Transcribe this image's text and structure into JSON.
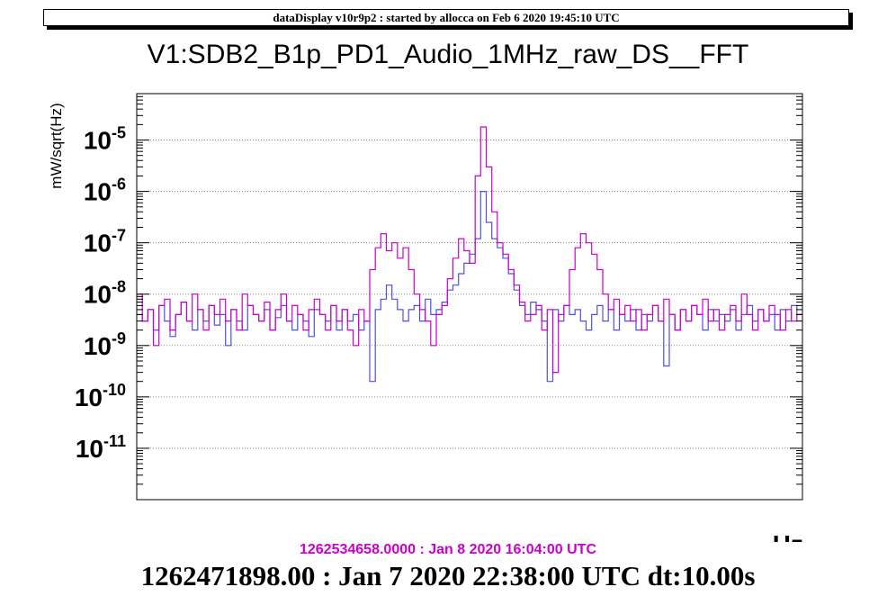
{
  "header": {
    "banner": "dataDisplay v10r9p2 : started by allocca on Feb  6 2020 19:45:10 UTC"
  },
  "footer": {
    "primary_time": "1262471898.00 : Jan  7 2020 22:38:00 UTC dt:10.00s",
    "secondary_time": "1262534658.0000 : Jan  8 2020 16:04:00 UTC"
  },
  "colors": {
    "series_primary": "#5050e0",
    "series_secondary": "#cc00cc",
    "grid": "#888888",
    "axis": "#000000"
  },
  "chart_data": {
    "type": "line",
    "title": "V1:SDB2_B1p_PD1_Audio_1MHz_raw_DS__FFT",
    "ylabel": "mW/sqrt(Hz)",
    "xlabel": "Hz",
    "yscale": "log",
    "ylim": [
      1e-12,
      8e-05
    ],
    "grid": true,
    "y_ticks": [
      {
        "value": 1e-05,
        "base": "10",
        "exp": "-5"
      },
      {
        "value": 1e-06,
        "base": "10",
        "exp": "-6"
      },
      {
        "value": 1e-07,
        "base": "10",
        "exp": "-7"
      },
      {
        "value": 1e-08,
        "base": "10",
        "exp": "-8"
      },
      {
        "value": 1e-09,
        "base": "10",
        "exp": "-9"
      },
      {
        "value": 1e-10,
        "base": "10",
        "exp": "-10"
      },
      {
        "value": 1e-11,
        "base": "10",
        "exp": "-11"
      }
    ],
    "series": [
      {
        "color": "#5050e0",
        "y": [
          4e-09,
          3e-09,
          5e-09,
          2e-09,
          6e-09,
          3e-09,
          1.5e-09,
          4e-09,
          7e-09,
          3e-09,
          2e-09,
          5e-09,
          3e-09,
          6e-09,
          2.5e-09,
          4e-09,
          1e-09,
          5e-09,
          3e-09,
          2e-09,
          6e-09,
          4e-09,
          3e-09,
          5e-09,
          2e-09,
          3.5e-09,
          6e-09,
          3e-09,
          2e-09,
          4e-09,
          3e-09,
          1.5e-09,
          5e-09,
          4e-09,
          3e-09,
          6e-09,
          2e-09,
          5e-09,
          3e-09,
          4e-09,
          2e-09,
          3e-09,
          2e-10,
          5e-09,
          8e-09,
          1.5e-08,
          8e-09,
          5e-09,
          3e-09,
          5e-09,
          6e-09,
          3e-09,
          8e-09,
          4e-09,
          5e-09,
          7e-09,
          1.2e-08,
          1.5e-08,
          2.5e-08,
          4e-08,
          6e-08,
          1.2e-07,
          1e-06,
          2.5e-07,
          1.2e-07,
          8e-08,
          5e-08,
          2.5e-08,
          1.2e-08,
          6e-09,
          4e-09,
          7e-09,
          5e-09,
          3e-09,
          2e-10,
          5e-09,
          3e-09,
          6e-09,
          4e-09,
          5e-09,
          3e-09,
          2e-09,
          4e-09,
          6e-09,
          3e-09,
          5e-09,
          2e-09,
          4e-09,
          3e-09,
          5e-09,
          2e-09,
          4e-09,
          3e-09,
          6e-09,
          3e-09,
          4e-10,
          4e-09,
          2e-09,
          5e-09,
          3e-09,
          6e-09,
          4e-09,
          2e-09,
          5e-09,
          3e-09,
          4e-09,
          3e-09,
          5e-09,
          2e-09,
          4e-09,
          6e-09,
          3e-09,
          5e-09,
          3e-09,
          4e-09,
          2e-09,
          5e-09,
          3e-09,
          6e-09,
          4e-09
        ]
      },
      {
        "color": "#cc00cc",
        "y": [
          1e-08,
          3e-09,
          5e-09,
          1e-09,
          6e-09,
          8e-09,
          2e-09,
          4e-09,
          7e-09,
          3e-09,
          1e-08,
          5e-09,
          2e-09,
          6e-09,
          4e-09,
          8e-09,
          3e-09,
          5e-09,
          2e-09,
          1e-08,
          6e-09,
          4e-09,
          3e-09,
          7e-09,
          2e-09,
          5e-09,
          1e-08,
          3e-09,
          6e-09,
          4e-09,
          2e-09,
          5e-09,
          8e-09,
          4e-09,
          2e-09,
          6e-09,
          3e-09,
          5e-09,
          2e-09,
          1e-09,
          5e-09,
          3e-09,
          3e-08,
          8e-08,
          1.5e-07,
          7e-08,
          1e-07,
          5e-08,
          8e-08,
          3e-08,
          1e-08,
          5e-09,
          3e-09,
          1e-09,
          4e-09,
          6e-09,
          2e-08,
          5e-08,
          1.2e-07,
          7e-08,
          4e-08,
          2e-06,
          1.8e-05,
          3e-06,
          4e-07,
          1e-07,
          6e-08,
          3e-08,
          1.5e-08,
          7e-09,
          3e-09,
          4e-09,
          6e-09,
          2e-09,
          5e-09,
          3e-10,
          4e-09,
          6e-09,
          3e-08,
          8e-08,
          1.5e-07,
          1e-07,
          6e-08,
          3e-08,
          1e-08,
          5e-09,
          8e-09,
          4e-09,
          6e-09,
          3e-09,
          5e-09,
          2e-09,
          4e-09,
          6e-09,
          3e-09,
          8e-09,
          4e-09,
          2e-09,
          5e-09,
          3e-09,
          6e-09,
          4e-09,
          8e-09,
          3e-09,
          5e-09,
          2e-09,
          4e-09,
          6e-09,
          3e-09,
          1e-08,
          4e-09,
          2e-09,
          5e-09,
          3e-09,
          6e-09,
          4e-09,
          2e-09,
          5e-09,
          3e-09,
          4e-09
        ]
      }
    ]
  }
}
